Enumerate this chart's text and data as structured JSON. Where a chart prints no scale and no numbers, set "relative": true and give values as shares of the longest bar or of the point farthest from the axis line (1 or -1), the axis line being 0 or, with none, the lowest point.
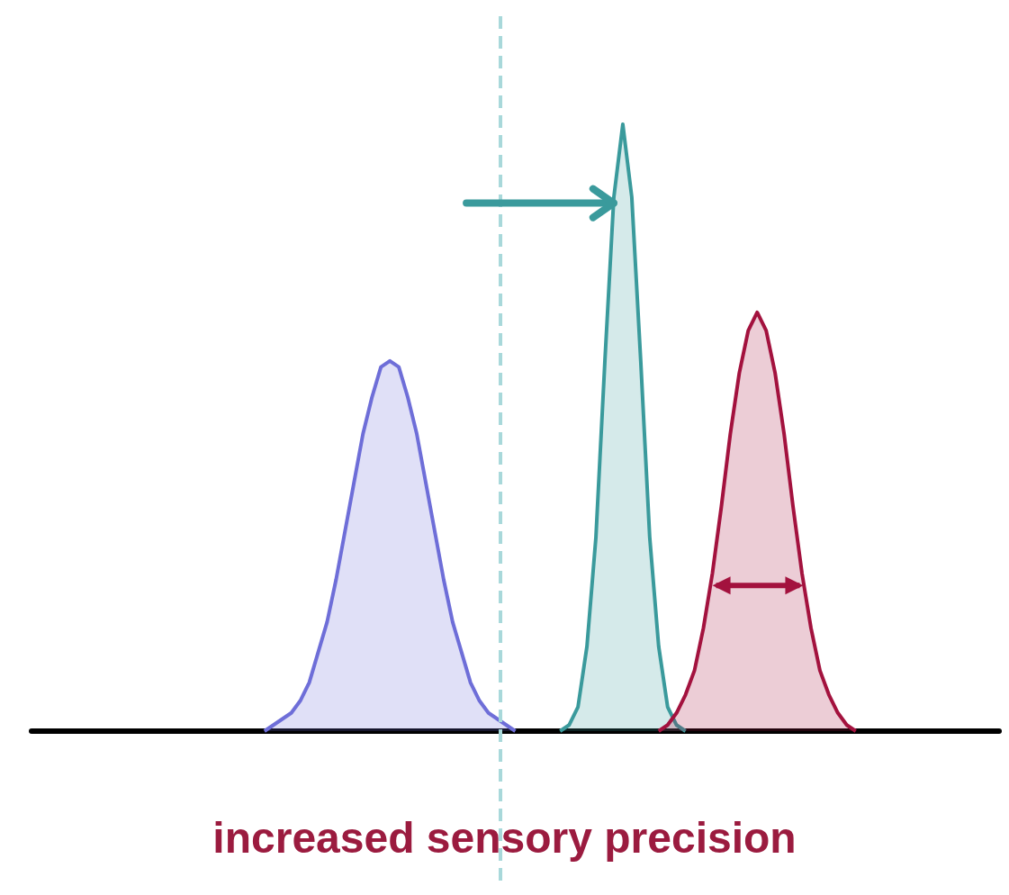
{
  "chart_data": {
    "type": "area",
    "relative": true,
    "grid": false,
    "marker": "none",
    "categories": [
      null,
      null,
      null,
      null,
      null,
      null,
      null,
      null,
      null,
      null,
      null,
      null,
      null,
      null,
      null,
      null,
      null,
      null,
      null,
      null,
      null,
      null,
      null,
      null,
      null,
      null,
      null,
      null,
      null,
      null,
      null,
      null,
      null,
      null,
      null,
      null,
      null,
      null,
      null,
      null,
      null,
      null,
      null,
      null,
      null,
      null,
      null,
      null,
      null,
      null,
      null,
      null,
      null,
      null,
      null,
      null,
      null,
      null,
      null,
      null,
      null,
      null,
      null,
      null,
      null,
      null,
      null,
      null,
      null,
      null,
      null,
      null,
      null,
      null,
      null,
      null,
      null,
      null,
      null,
      null,
      null,
      null,
      null,
      null,
      null,
      null,
      null,
      null,
      null,
      null,
      null,
      null,
      null,
      null,
      null,
      null,
      null,
      null,
      null,
      null,
      null,
      null,
      null,
      null,
      null,
      null,
      null,
      null,
      null
    ],
    "series": [
      {
        "color": "#6e6ed8",
        "values": [
          null,
          null,
          null,
          null,
          null,
          null,
          null,
          null,
          null,
          null,
          null,
          null,
          null,
          null,
          null,
          null,
          null,
          null,
          null,
          null,
          null,
          null,
          null,
          null,
          null,
          null,
          0,
          0.01,
          0.02,
          0.03,
          0.05,
          0.08,
          0.13,
          0.18,
          0.25,
          0.33,
          0.41,
          0.49,
          0.55,
          0.6,
          0.61,
          0.6,
          0.55,
          0.49,
          0.41,
          0.33,
          0.25,
          0.18,
          0.13,
          0.08,
          0.05,
          0.03,
          0.02,
          0.01,
          0,
          null,
          null,
          null,
          null,
          null,
          null,
          null,
          null,
          null,
          null,
          null,
          null,
          null,
          null,
          null,
          null,
          null,
          null,
          null,
          null,
          null,
          null,
          null,
          null,
          null,
          null,
          null,
          null,
          null,
          null,
          null,
          null,
          null,
          null,
          null,
          null,
          null,
          null,
          null,
          null,
          null,
          null,
          null,
          null,
          null,
          null,
          null,
          null,
          null,
          null,
          null,
          null,
          null,
          null
        ]
      },
      {
        "color": "#3a9a9c",
        "values": [
          null,
          null,
          null,
          null,
          null,
          null,
          null,
          null,
          null,
          null,
          null,
          null,
          null,
          null,
          null,
          null,
          null,
          null,
          null,
          null,
          null,
          null,
          null,
          null,
          null,
          null,
          null,
          null,
          null,
          null,
          null,
          null,
          null,
          null,
          null,
          null,
          null,
          null,
          null,
          null,
          null,
          null,
          null,
          null,
          null,
          null,
          null,
          null,
          null,
          null,
          null,
          null,
          null,
          null,
          null,
          null,
          null,
          null,
          null,
          0,
          0.01,
          0.04,
          0.14,
          0.32,
          0.61,
          0.88,
          1,
          0.88,
          0.61,
          0.32,
          0.14,
          0.04,
          0.01,
          0,
          null,
          null,
          null,
          null,
          null,
          null,
          null,
          null,
          null,
          null,
          null,
          null,
          null,
          null,
          null,
          null,
          null,
          null,
          null,
          null,
          null,
          null,
          null,
          null,
          null,
          null,
          null,
          null,
          null,
          null,
          null,
          null,
          null,
          null,
          null
        ]
      },
      {
        "color": "#a3123e",
        "values": [
          null,
          null,
          null,
          null,
          null,
          null,
          null,
          null,
          null,
          null,
          null,
          null,
          null,
          null,
          null,
          null,
          null,
          null,
          null,
          null,
          null,
          null,
          null,
          null,
          null,
          null,
          null,
          null,
          null,
          null,
          null,
          null,
          null,
          null,
          null,
          null,
          null,
          null,
          null,
          null,
          null,
          null,
          null,
          null,
          null,
          null,
          null,
          null,
          null,
          null,
          null,
          null,
          null,
          null,
          null,
          null,
          null,
          null,
          null,
          null,
          null,
          null,
          null,
          null,
          null,
          null,
          null,
          null,
          null,
          null,
          0,
          0.01,
          0.03,
          0.06,
          0.1,
          0.17,
          0.26,
          0.37,
          0.49,
          0.59,
          0.66,
          0.69,
          0.66,
          0.59,
          0.49,
          0.37,
          0.26,
          0.17,
          0.1,
          0.06,
          0.03,
          0.01,
          0,
          null,
          null,
          null,
          null,
          null,
          null,
          null,
          null,
          null,
          null,
          null,
          null,
          null,
          null,
          null,
          null
        ]
      }
    ],
    "annotations": [
      "increased sensory precision"
    ]
  }
}
